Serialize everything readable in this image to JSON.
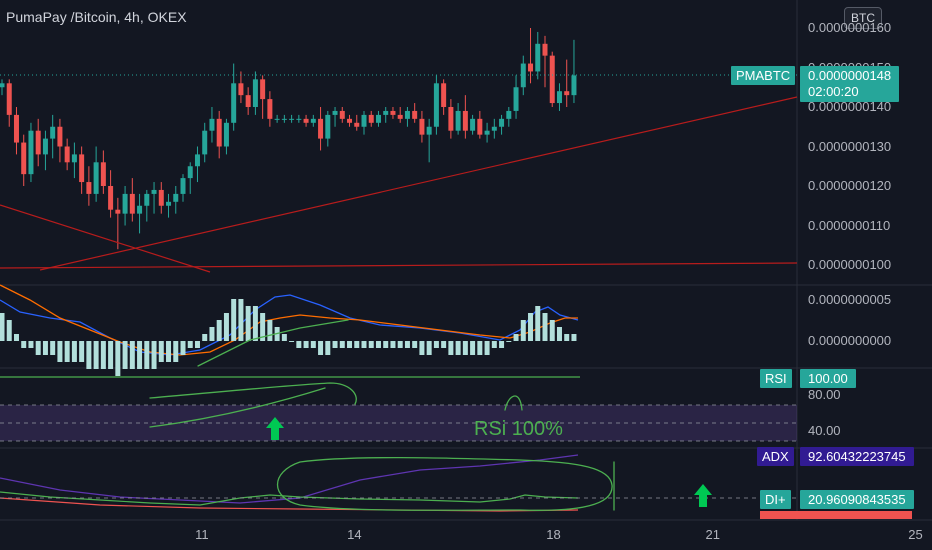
{
  "header": {
    "title": "PumaPay /Bitcoin, 4h, OKEX",
    "currency": "BTC"
  },
  "price_axis": {
    "ticks": [
      "0.0000000160",
      "0.0000000150",
      "0.0000000140",
      "0.0000000130",
      "0.0000000120",
      "0.0000000110",
      "0.0000000100"
    ],
    "symbol_tag": "PMABTC",
    "last_price": "0.0000000148",
    "countdown": "02:00:20"
  },
  "macd_axis": {
    "ticks": [
      "0.0000000005",
      "0.0000000000"
    ]
  },
  "rsi_axis": {
    "tag": "RSI",
    "value": "100.00",
    "ticks": [
      "80.00",
      "40.00"
    ]
  },
  "adx_axis": {
    "adx_tag": "ADX",
    "adx_value": "92.60432223745",
    "di_plus_tag": "DI+",
    "di_plus_value": "20.96090843535"
  },
  "annotation": {
    "rsi_note": "RSi 100%"
  },
  "time_axis": {
    "labels": [
      "11",
      "14",
      "18",
      "21",
      "25"
    ]
  },
  "colors": {
    "background": "#131722",
    "up": "#26a69a",
    "down": "#ef5350",
    "macd_line": "#2962ff",
    "signal_line": "#ff6d00",
    "histogram": "#b2dfdb",
    "rsi_band": "#7e57c2",
    "annotation": "#4caf50",
    "trendline": "#b71c1c",
    "adx": "#5e35b1"
  },
  "chart_data": {
    "type": "candlestick",
    "title": "PumaPay /Bitcoin, 4h, OKEX",
    "ylim": [
      9.8e-09,
      1.62e-08
    ],
    "series": [
      {
        "name": "PMABTC",
        "ohlc": [
          [
            145,
            147,
            143,
            146
          ],
          [
            146,
            147,
            135,
            138
          ],
          [
            138,
            140,
            128,
            131
          ],
          [
            131,
            133,
            120,
            123
          ],
          [
            123,
            136,
            121,
            134
          ],
          [
            134,
            137,
            125,
            128
          ],
          [
            128,
            134,
            124,
            132
          ],
          [
            132,
            138,
            127,
            135
          ],
          [
            135,
            137,
            126,
            130
          ],
          [
            130,
            132,
            124,
            126
          ],
          [
            126,
            131,
            122,
            128
          ],
          [
            128,
            130,
            118,
            121
          ],
          [
            121,
            125,
            115,
            118
          ],
          [
            118,
            130,
            116,
            126
          ],
          [
            126,
            129,
            118,
            120
          ],
          [
            120,
            124,
            112,
            114
          ],
          [
            114,
            117,
            104,
            113
          ],
          [
            113,
            120,
            110,
            118
          ],
          [
            118,
            122,
            111,
            113
          ],
          [
            113,
            118,
            108,
            115
          ],
          [
            115,
            119,
            111,
            118
          ],
          [
            118,
            121,
            113,
            119
          ],
          [
            119,
            121,
            113,
            115
          ],
          [
            115,
            118,
            112,
            116
          ],
          [
            116,
            120,
            113,
            118
          ],
          [
            118,
            123,
            116,
            122
          ],
          [
            122,
            126,
            118,
            125
          ],
          [
            125,
            130,
            121,
            128
          ],
          [
            128,
            136,
            126,
            134
          ],
          [
            134,
            140,
            131,
            137
          ],
          [
            137,
            139,
            127,
            130
          ],
          [
            130,
            137,
            128,
            136
          ],
          [
            136,
            151,
            134,
            146
          ],
          [
            146,
            149,
            141,
            143
          ],
          [
            143,
            145,
            138,
            140
          ],
          [
            140,
            149,
            138,
            147
          ],
          [
            147,
            148,
            137,
            142
          ],
          [
            142,
            144,
            135,
            137
          ],
          [
            137,
            138,
            136,
            137
          ],
          [
            137,
            138,
            136,
            137
          ],
          [
            137,
            138,
            136,
            137
          ],
          [
            137,
            138,
            136,
            137
          ],
          [
            137,
            138,
            135,
            136
          ],
          [
            136,
            138,
            135,
            137
          ],
          [
            137,
            140,
            129,
            132
          ],
          [
            132,
            139,
            130,
            138
          ],
          [
            138,
            140,
            135,
            139
          ],
          [
            139,
            140,
            136,
            137
          ],
          [
            137,
            138,
            135,
            136
          ],
          [
            136,
            138,
            134,
            135
          ],
          [
            135,
            139,
            133,
            138
          ],
          [
            138,
            139,
            135,
            136
          ],
          [
            136,
            139,
            135,
            138
          ],
          [
            138,
            140,
            136,
            139
          ],
          [
            139,
            140,
            137,
            138
          ],
          [
            138,
            140,
            136,
            137
          ],
          [
            137,
            140,
            135,
            139
          ],
          [
            139,
            141,
            136,
            137
          ],
          [
            137,
            139,
            131,
            133
          ],
          [
            133,
            137,
            126,
            135
          ],
          [
            135,
            148,
            133,
            146
          ],
          [
            146,
            147,
            138,
            140
          ],
          [
            140,
            142,
            132,
            134
          ],
          [
            134,
            141,
            133,
            139
          ],
          [
            139,
            143,
            132,
            134
          ],
          [
            134,
            138,
            133,
            137
          ],
          [
            137,
            139,
            132,
            133
          ],
          [
            133,
            136,
            131,
            134
          ],
          [
            134,
            137,
            132,
            135
          ],
          [
            135,
            138,
            133,
            137
          ],
          [
            137,
            140,
            135,
            139
          ],
          [
            139,
            148,
            137,
            145
          ],
          [
            145,
            153,
            143,
            151
          ],
          [
            151,
            160,
            146,
            149
          ],
          [
            149,
            159,
            147,
            156
          ],
          [
            156,
            158,
            145,
            153
          ],
          [
            153,
            154,
            140,
            141
          ],
          [
            141,
            146,
            139,
            144
          ],
          [
            144,
            152,
            140,
            143
          ],
          [
            143,
            157,
            141,
            148
          ]
        ]
      }
    ],
    "x_labels": [
      "11",
      "14",
      "18",
      "21",
      "25"
    ],
    "x_label_index": [
      27.5,
      48.5,
      76,
      98,
      126
    ],
    "indicators": {
      "macd_hist": [
        0.4,
        0.3,
        0.1,
        -0.1,
        -0.1,
        -0.2,
        -0.2,
        -0.2,
        -0.3,
        -0.3,
        -0.3,
        -0.3,
        -0.4,
        -0.4,
        -0.4,
        -0.4,
        -0.5,
        -0.4,
        -0.4,
        -0.4,
        -0.4,
        -0.4,
        -0.3,
        -0.3,
        -0.3,
        -0.2,
        -0.1,
        -0.1,
        0.1,
        0.2,
        0.3,
        0.4,
        0.6,
        0.6,
        0.5,
        0.5,
        0.4,
        0.3,
        0.2,
        0.1,
        0.0,
        -0.1,
        -0.1,
        -0.1,
        -0.2,
        -0.2,
        -0.1,
        -0.1,
        -0.1,
        -0.1,
        -0.1,
        -0.1,
        -0.1,
        -0.1,
        -0.1,
        -0.1,
        -0.1,
        -0.1,
        -0.2,
        -0.2,
        -0.1,
        -0.1,
        -0.2,
        -0.2,
        -0.2,
        -0.2,
        -0.2,
        -0.2,
        -0.1,
        -0.1,
        0.0,
        0.1,
        0.3,
        0.4,
        0.5,
        0.4,
        0.3,
        0.2,
        0.1,
        0.1
      ]
    }
  }
}
